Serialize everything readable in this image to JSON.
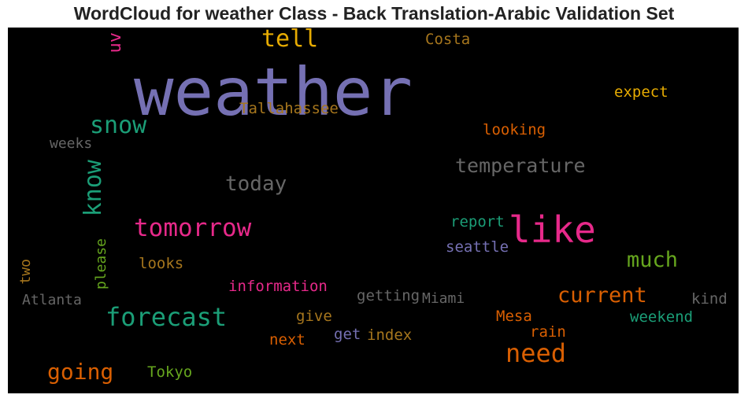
{
  "chart_data": {
    "type": "wordcloud",
    "title": "WordCloud for weather Class - Back Translation-Arabic Validation Set",
    "background": "#000000",
    "words": [
      {
        "text": "weather",
        "color": "#7570b3"
      },
      {
        "text": "like",
        "color": "#e7298a"
      },
      {
        "text": "forecast",
        "color": "#1b9e77"
      },
      {
        "text": "tomorrow",
        "color": "#e7298a"
      },
      {
        "text": "need",
        "color": "#d95f02"
      },
      {
        "text": "snow",
        "color": "#1b9e77"
      },
      {
        "text": "know",
        "color": "#1b9e77"
      },
      {
        "text": "tell",
        "color": "#e6ab02"
      },
      {
        "text": "temperature",
        "color": "#666666"
      },
      {
        "text": "current",
        "color": "#d95f02"
      },
      {
        "text": "going",
        "color": "#d95f02"
      },
      {
        "text": "today",
        "color": "#666666"
      },
      {
        "text": "much",
        "color": "#66a61e"
      },
      {
        "text": "Tallahassee",
        "color": "#a6761d"
      },
      {
        "text": "expect",
        "color": "#e6ab02"
      },
      {
        "text": "Costa",
        "color": "#a6761d"
      },
      {
        "text": "uv",
        "color": "#e7298a"
      },
      {
        "text": "looking",
        "color": "#d95f02"
      },
      {
        "text": "weeks",
        "color": "#666666"
      },
      {
        "text": "report",
        "color": "#1b9e77"
      },
      {
        "text": "seattle",
        "color": "#7570b3"
      },
      {
        "text": "looks",
        "color": "#a6761d"
      },
      {
        "text": "please",
        "color": "#66a61e"
      },
      {
        "text": "two",
        "color": "#a6761d"
      },
      {
        "text": "Atlanta",
        "color": "#666666"
      },
      {
        "text": "information",
        "color": "#e7298a"
      },
      {
        "text": "getting",
        "color": "#666666"
      },
      {
        "text": "Miami",
        "color": "#666666"
      },
      {
        "text": "kind",
        "color": "#666666"
      },
      {
        "text": "give",
        "color": "#a6761d"
      },
      {
        "text": "Mesa",
        "color": "#d95f02"
      },
      {
        "text": "weekend",
        "color": "#1b9e77"
      },
      {
        "text": "rain",
        "color": "#d95f02"
      },
      {
        "text": "get",
        "color": "#7570b3"
      },
      {
        "text": "index",
        "color": "#a6761d"
      },
      {
        "text": "next",
        "color": "#d95f02"
      },
      {
        "text": "Tokyo",
        "color": "#66a61e"
      }
    ]
  }
}
